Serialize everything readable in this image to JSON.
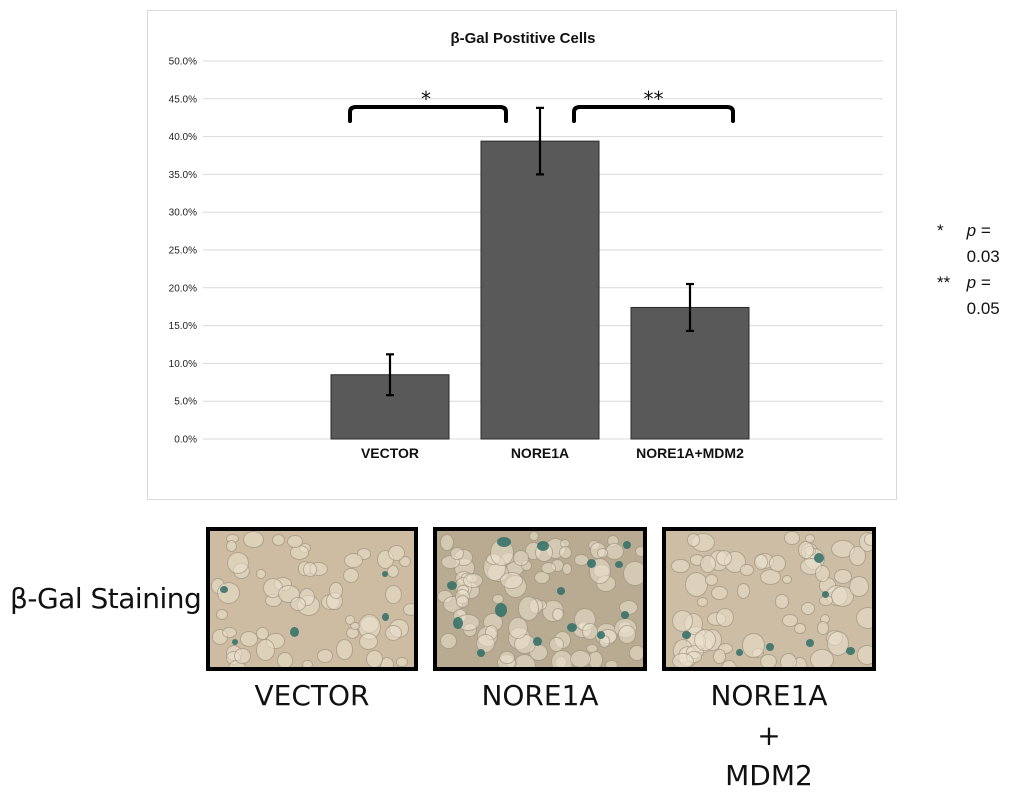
{
  "chart_data": {
    "type": "bar",
    "title": "β-Gal Postitive Cells",
    "categories": [
      "VECTOR",
      "NORE1A",
      "NORE1A+MDM2"
    ],
    "values": [
      8.5,
      39.4,
      17.4
    ],
    "errors": [
      2.7,
      4.4,
      3.1
    ],
    "ylim": [
      0,
      50
    ],
    "yticks": [
      "0.0%",
      "5.0%",
      "10.0%",
      "15.0%",
      "20.0%",
      "25.0%",
      "30.0%",
      "35.0%",
      "40.0%",
      "45.0%",
      "50.0%"
    ],
    "ytick_values": [
      0,
      5,
      10,
      15,
      20,
      25,
      30,
      35,
      40,
      45,
      50
    ],
    "xlabel": "",
    "ylabel": "",
    "grid": true,
    "bar_color": "#595959",
    "significance": [
      {
        "from": 0,
        "to": 1,
        "label": "*"
      },
      {
        "from": 1,
        "to": 2,
        "label": "**"
      }
    ]
  },
  "pvalues": [
    {
      "mark": "*",
      "symbol": "p",
      "rest": " = 0.03"
    },
    {
      "mark": "**",
      "symbol": "p",
      "rest": " = 0.05"
    }
  ],
  "staining": {
    "label": "β-Gal Staining",
    "captions": {
      "vector": "VECTOR",
      "nore1a": "NORE1A",
      "combo_line1": "NORE1A",
      "combo_line2": "+",
      "combo_line3": "MDM2"
    }
  }
}
